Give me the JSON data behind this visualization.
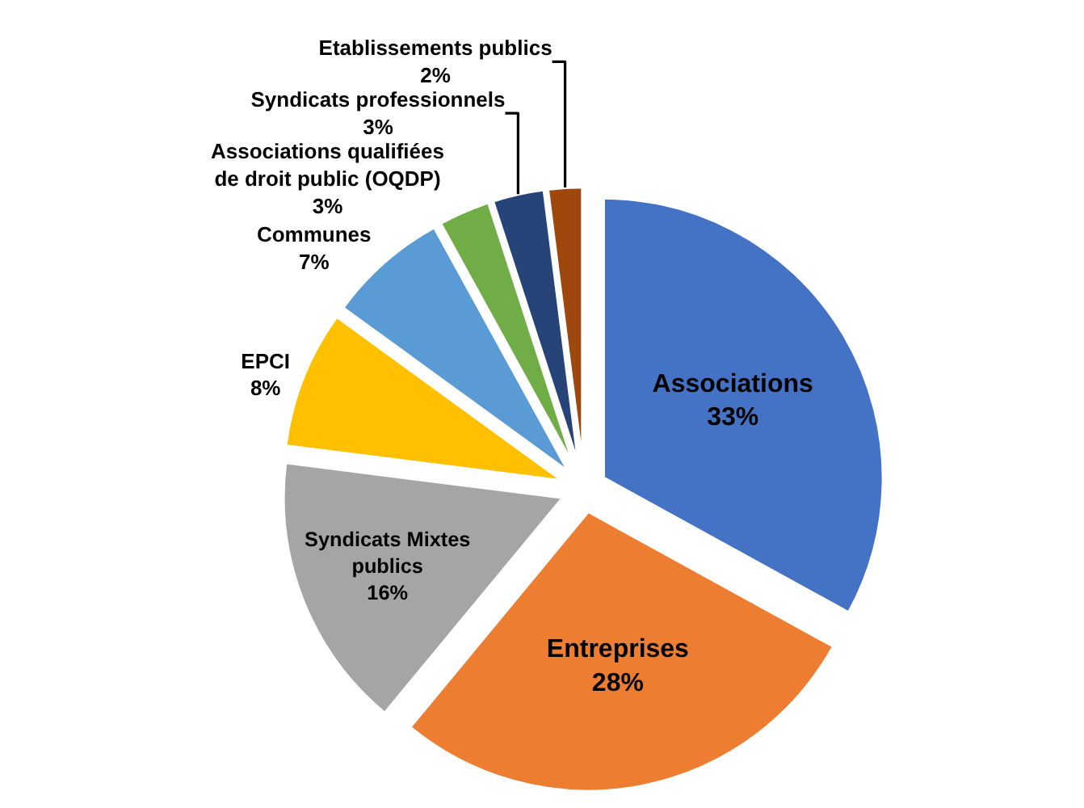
{
  "chart_data": {
    "type": "pie",
    "categories": [
      "Associations",
      "Entreprises",
      "Syndicats Mixtes publics",
      "EPCI",
      "Communes",
      "Associations qualifiées de droit public (OQDP)",
      "Syndicats professionnels",
      "Etablissements publics"
    ],
    "values": [
      33,
      28,
      16,
      8,
      7,
      3,
      3,
      2
    ],
    "value_labels": [
      "33%",
      "28%",
      "16%",
      "8%",
      "7%",
      "3%",
      "3%",
      "2%"
    ],
    "colors": [
      "#4472c4",
      "#ed7d31",
      "#a5a5a5",
      "#ffc000",
      "#5b9bd5",
      "#70ad47",
      "#264478",
      "#9e480e"
    ],
    "legend": false
  }
}
